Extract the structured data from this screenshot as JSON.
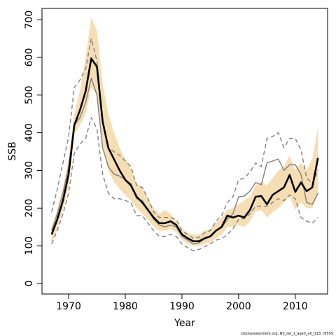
{
  "chart_data": {
    "type": "line",
    "xlabel": "Year",
    "ylabel": "SSB",
    "footnote": "stockassessment.org, NS_sel_1_age3_all_Q13, r6559",
    "x": [
      1967,
      1968,
      1969,
      1970,
      1971,
      1972,
      1973,
      1974,
      1975,
      1976,
      1977,
      1978,
      1979,
      1980,
      1981,
      1982,
      1983,
      1984,
      1985,
      1986,
      1987,
      1988,
      1989,
      1990,
      1991,
      1992,
      1993,
      1994,
      1995,
      1996,
      1997,
      1998,
      1999,
      2000,
      2001,
      2002,
      2003,
      2004,
      2005,
      2006,
      2007,
      2008,
      2009,
      2010,
      2011,
      2012,
      2013,
      2014
    ],
    "xlim": [
      1965.3,
      2015.7
    ],
    "xticks": [
      1970,
      1980,
      1990,
      2000,
      2010
    ],
    "ylim": [
      -28,
      730
    ],
    "yticks": [
      0,
      100,
      200,
      300,
      400,
      500,
      600,
      700
    ],
    "band": {
      "color": "#f5deb3",
      "high": [
        150,
        195,
        255,
        330,
        450,
        510,
        600,
        705,
        670,
        530,
        450,
        400,
        360,
        330,
        305,
        265,
        255,
        225,
        200,
        185,
        195,
        185,
        165,
        145,
        135,
        130,
        130,
        140,
        145,
        160,
        175,
        195,
        200,
        210,
        220,
        230,
        260,
        270,
        260,
        280,
        300,
        310,
        340,
        300,
        320,
        300,
        330,
        415
      ],
      "low": [
        105,
        145,
        195,
        260,
        395,
        420,
        450,
        520,
        500,
        370,
        300,
        270,
        250,
        235,
        220,
        200,
        185,
        170,
        150,
        140,
        140,
        145,
        135,
        115,
        105,
        100,
        100,
        105,
        110,
        120,
        130,
        150,
        150,
        155,
        150,
        165,
        190,
        195,
        175,
        190,
        200,
        215,
        230,
        195,
        215,
        200,
        200,
        235
      ]
    },
    "series": [
      {
        "color": "#808080",
        "dashed": true,
        "width": 1.4,
        "values": [
          190,
          250,
          320,
          390,
          520,
          540,
          570,
          650,
          590,
          430,
          360,
          350,
          340,
          325,
          310,
          260,
          255,
          225,
          190,
          175,
          175,
          175,
          170,
          140,
          130,
          120,
          122,
          135,
          140,
          165,
          180,
          215,
          230,
          275,
          280,
          295,
          320,
          310,
          385,
          390,
          400,
          360,
          385,
          385,
          355,
          280,
          265,
          300
        ]
      },
      {
        "color": "#808080",
        "dashed": true,
        "width": 1.4,
        "values": [
          105,
          140,
          185,
          240,
          345,
          370,
          385,
          440,
          410,
          290,
          240,
          225,
          225,
          220,
          215,
          180,
          180,
          160,
          140,
          125,
          125,
          130,
          125,
          105,
          95,
          87,
          90,
          98,
          105,
          115,
          118,
          130,
          145,
          170,
          172,
          185,
          205,
          205,
          205,
          215,
          225,
          220,
          235,
          225,
          175,
          165,
          160,
          175
        ]
      },
      {
        "color": "#808080",
        "dashed": false,
        "width": 1.4,
        "values": [
          140,
          185,
          240,
          310,
          420,
          440,
          480,
          545,
          500,
          360,
          310,
          290,
          285,
          275,
          265,
          225,
          220,
          195,
          170,
          155,
          150,
          155,
          150,
          125,
          115,
          105,
          108,
          118,
          125,
          140,
          148,
          170,
          185,
          230,
          232,
          245,
          268,
          262,
          320,
          325,
          330,
          300,
          315,
          315,
          290,
          215,
          210,
          240
        ]
      },
      {
        "color": "#000000",
        "dashed": false,
        "width": 2.6,
        "values": [
          130,
          170,
          220,
          290,
          420,
          460,
          510,
          597,
          575,
          430,
          360,
          330,
          300,
          275,
          260,
          230,
          215,
          195,
          175,
          160,
          160,
          165,
          155,
          130,
          120,
          112,
          112,
          120,
          125,
          140,
          150,
          180,
          175,
          180,
          175,
          195,
          230,
          232,
          210,
          235,
          245,
          255,
          288,
          243,
          268,
          245,
          255,
          333
        ]
      }
    ]
  }
}
